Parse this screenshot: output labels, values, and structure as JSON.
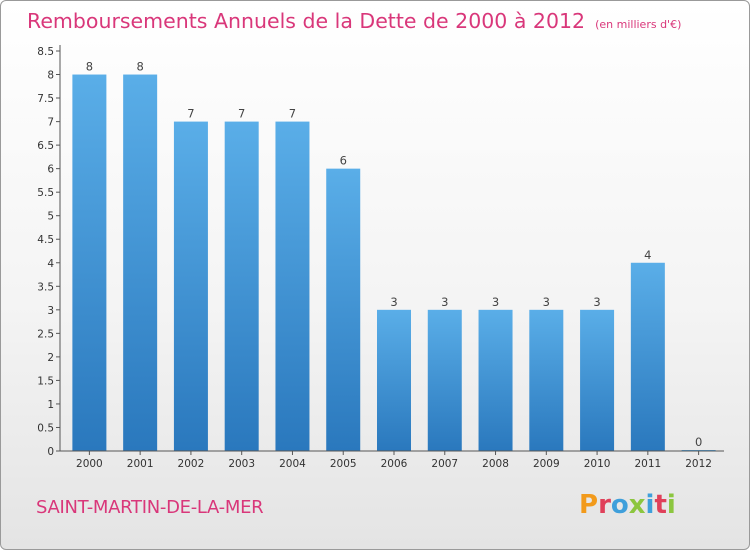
{
  "chart_data": {
    "type": "bar",
    "title": "Remboursements Annuels de la Dette de 2000 à 2012",
    "subtitle": "(en milliers d'€)",
    "categories": [
      "2000",
      "2001",
      "2002",
      "2003",
      "2004",
      "2005",
      "2006",
      "2007",
      "2008",
      "2009",
      "2010",
      "2011",
      "2012"
    ],
    "values": [
      8,
      8,
      7,
      7,
      7,
      6,
      3,
      3,
      3,
      3,
      3,
      4,
      0
    ],
    "data_labels": [
      "8",
      "8",
      "7",
      "7",
      "7",
      "6",
      "3",
      "3",
      "3",
      "3",
      "3",
      "4",
      "0"
    ],
    "yticks": [
      "0",
      "0.5",
      "1",
      "1.5",
      "2",
      "2.5",
      "3",
      "3.5",
      "4",
      "4.5",
      "5",
      "5.5",
      "6",
      "6.5",
      "7",
      "7.5",
      "8",
      "8.5"
    ],
    "ylim": [
      0,
      8.5
    ],
    "xlabel": "",
    "ylabel": "",
    "grid": false,
    "bar_color": "#3d8fd4"
  },
  "commune": "SAINT-MARTIN-DE-LA-MER",
  "logo": {
    "text": "Proxiti",
    "letter_colors": [
      "#f29a1b",
      "#e0405a",
      "#3f9fdb",
      "#8cc63f",
      "#3f9fdb",
      "#e0405a",
      "#8cc63f"
    ]
  },
  "colors": {
    "title": "#d9377a",
    "axis": "#555555"
  }
}
